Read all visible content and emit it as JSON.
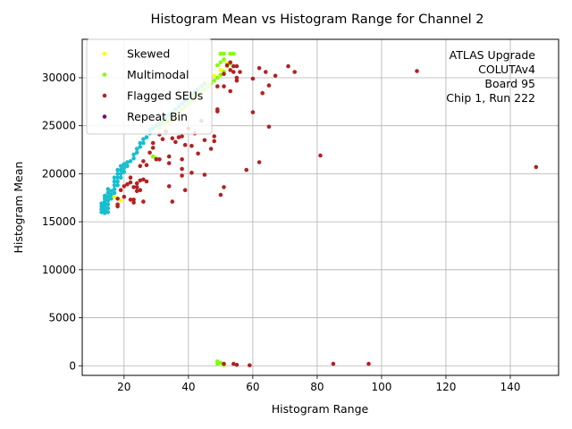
{
  "chart_data": {
    "type": "scatter",
    "title": "Histogram Mean vs Histogram Range for Channel 2",
    "xlabel": "Histogram Range",
    "ylabel": "Histogram Mean",
    "xlim": [
      7,
      155
    ],
    "ylim": [
      -1000,
      34000
    ],
    "xticks": [
      20,
      40,
      60,
      80,
      100,
      120,
      140
    ],
    "yticks": [
      0,
      5000,
      10000,
      15000,
      20000,
      25000,
      30000
    ],
    "grid": true,
    "legend_position": "top-left",
    "annotation": [
      "ATLAS Upgrade",
      "COLUTAv4",
      "Board 95",
      "Chip 1, Run 222"
    ],
    "series": [
      {
        "name": "",
        "color": "#17becf",
        "points": [
          [
            13,
            16000
          ],
          [
            13,
            16300
          ],
          [
            13,
            16600
          ],
          [
            13,
            16900
          ],
          [
            14,
            15900
          ],
          [
            14,
            16200
          ],
          [
            14,
            16500
          ],
          [
            14,
            16800
          ],
          [
            14,
            17100
          ],
          [
            14,
            17400
          ],
          [
            14,
            17700
          ],
          [
            15,
            16000
          ],
          [
            15,
            16400
          ],
          [
            15,
            16800
          ],
          [
            15,
            17200
          ],
          [
            15,
            17600
          ],
          [
            15,
            18000
          ],
          [
            15,
            18400
          ],
          [
            16,
            17400
          ],
          [
            16,
            17800
          ],
          [
            16,
            18200
          ],
          [
            17,
            18000
          ],
          [
            17,
            18400
          ],
          [
            17,
            18800
          ],
          [
            17,
            19200
          ],
          [
            17,
            19600
          ],
          [
            18,
            18800
          ],
          [
            18,
            19200
          ],
          [
            18,
            19600
          ],
          [
            18,
            20000
          ],
          [
            18,
            20400
          ],
          [
            19,
            19600
          ],
          [
            19,
            20000
          ],
          [
            19,
            20400
          ],
          [
            19,
            20800
          ],
          [
            20,
            20200
          ],
          [
            20,
            20600
          ],
          [
            20,
            21000
          ],
          [
            21,
            20800
          ],
          [
            21,
            21200
          ],
          [
            22,
            21300
          ],
          [
            23,
            21600
          ],
          [
            23,
            22000
          ],
          [
            24,
            22200
          ],
          [
            24,
            22600
          ],
          [
            25,
            22800
          ],
          [
            25,
            23200
          ],
          [
            26,
            23200
          ],
          [
            26,
            23600
          ],
          [
            27,
            23800
          ],
          [
            28,
            24200
          ],
          [
            28,
            24600
          ],
          [
            29,
            24700
          ],
          [
            30,
            25000
          ],
          [
            31,
            25200
          ],
          [
            32,
            25500
          ],
          [
            33,
            25800
          ],
          [
            34,
            26100
          ],
          [
            35,
            26400
          ],
          [
            36,
            26700
          ],
          [
            37,
            27000
          ],
          [
            38,
            27300
          ],
          [
            39,
            27600
          ],
          [
            40,
            27900
          ],
          [
            41,
            28200
          ],
          [
            42,
            28500
          ],
          [
            43,
            28800
          ],
          [
            44,
            29100
          ],
          [
            45,
            29400
          ]
        ]
      },
      {
        "name": "Skewed",
        "color": "#ffff00",
        "points": [
          [
            34,
            25200
          ],
          [
            36,
            26000
          ],
          [
            38,
            26700
          ],
          [
            40,
            27400
          ],
          [
            42,
            28100
          ],
          [
            44,
            28800
          ],
          [
            46,
            29500
          ],
          [
            48,
            30200
          ],
          [
            50,
            30800
          ],
          [
            52,
            31500
          ],
          [
            17,
            17600
          ],
          [
            19,
            17200
          ]
        ]
      },
      {
        "name": "Multimodal",
        "color": "#7fff00",
        "points": [
          [
            29,
            21800
          ],
          [
            30,
            21600
          ],
          [
            31,
            24800
          ],
          [
            32,
            25200
          ],
          [
            33,
            25400
          ],
          [
            34,
            25600
          ],
          [
            35,
            25900
          ],
          [
            36,
            26200
          ],
          [
            37,
            26400
          ],
          [
            38,
            26700
          ],
          [
            39,
            27000
          ],
          [
            40,
            27300
          ],
          [
            41,
            27600
          ],
          [
            42,
            27900
          ],
          [
            43,
            28200
          ],
          [
            44,
            28500
          ],
          [
            45,
            28800
          ],
          [
            46,
            29100
          ],
          [
            47,
            29400
          ],
          [
            48,
            29700
          ],
          [
            49,
            30000
          ],
          [
            50,
            30300
          ],
          [
            51,
            30600
          ],
          [
            49,
            31300
          ],
          [
            50,
            31600
          ],
          [
            51,
            31900
          ],
          [
            52,
            31200
          ],
          [
            53,
            31500
          ],
          [
            50,
            32500
          ],
          [
            51,
            32500
          ],
          [
            53,
            32500
          ],
          [
            54,
            32500
          ],
          [
            49,
            200
          ],
          [
            50,
            300
          ],
          [
            51,
            100
          ],
          [
            49,
            450
          ]
        ]
      },
      {
        "name": "Flagged SEUs",
        "color": "#b22222",
        "points": [
          [
            18,
            16600
          ],
          [
            18,
            16800
          ],
          [
            18,
            17400
          ],
          [
            19,
            18300
          ],
          [
            20,
            17600
          ],
          [
            20,
            18700
          ],
          [
            21,
            18900
          ],
          [
            22,
            17300
          ],
          [
            22,
            19100
          ],
          [
            22,
            19600
          ],
          [
            23,
            17000
          ],
          [
            23,
            17300
          ],
          [
            23,
            18600
          ],
          [
            24,
            18200
          ],
          [
            24,
            18600
          ],
          [
            24,
            19000
          ],
          [
            25,
            18300
          ],
          [
            25,
            19300
          ],
          [
            26,
            17100
          ],
          [
            26,
            19400
          ],
          [
            27,
            19200
          ],
          [
            25,
            20800
          ],
          [
            26,
            21300
          ],
          [
            27,
            20900
          ],
          [
            28,
            22200
          ],
          [
            29,
            23200
          ],
          [
            29,
            22700
          ],
          [
            30,
            21500
          ],
          [
            31,
            21500
          ],
          [
            31,
            24100
          ],
          [
            32,
            23600
          ],
          [
            33,
            24400
          ],
          [
            34,
            21100
          ],
          [
            34,
            21800
          ],
          [
            34,
            18700
          ],
          [
            35,
            17100
          ],
          [
            35,
            23700
          ],
          [
            36,
            23300
          ],
          [
            37,
            23800
          ],
          [
            38,
            23900
          ],
          [
            38,
            21500
          ],
          [
            38,
            20500
          ],
          [
            38,
            19800
          ],
          [
            39,
            18300
          ],
          [
            39,
            23000
          ],
          [
            40,
            24700
          ],
          [
            41,
            20100
          ],
          [
            41,
            22900
          ],
          [
            42,
            24200
          ],
          [
            43,
            22100
          ],
          [
            44,
            25500
          ],
          [
            45,
            19900
          ],
          [
            45,
            23500
          ],
          [
            47,
            22600
          ],
          [
            48,
            23900
          ],
          [
            48,
            23400
          ],
          [
            49,
            26700
          ],
          [
            49,
            26500
          ],
          [
            50,
            17800
          ],
          [
            51,
            18600
          ],
          [
            49,
            29100
          ],
          [
            51,
            29100
          ],
          [
            51,
            30400
          ],
          [
            52,
            31300
          ],
          [
            53,
            30800
          ],
          [
            53,
            31600
          ],
          [
            54,
            31200
          ],
          [
            54,
            30600
          ],
          [
            55,
            31200
          ],
          [
            55,
            29700
          ],
          [
            56,
            30600
          ],
          [
            53,
            28600
          ],
          [
            55,
            30000
          ],
          [
            58,
            20400
          ],
          [
            60,
            26400
          ],
          [
            60,
            29900
          ],
          [
            62,
            31000
          ],
          [
            62,
            21200
          ],
          [
            63,
            28400
          ],
          [
            64,
            30600
          ],
          [
            65,
            29200
          ],
          [
            65,
            24900
          ],
          [
            67,
            30200
          ],
          [
            71,
            31200
          ],
          [
            73,
            30600
          ],
          [
            81,
            21900
          ],
          [
            111,
            30700
          ],
          [
            148,
            20700
          ],
          [
            51,
            200
          ],
          [
            54,
            200
          ],
          [
            55,
            100
          ],
          [
            59,
            50
          ],
          [
            85,
            200
          ],
          [
            96,
            200
          ]
        ]
      },
      {
        "name": "Repeat Bin",
        "color": "#800080",
        "points": []
      }
    ]
  }
}
